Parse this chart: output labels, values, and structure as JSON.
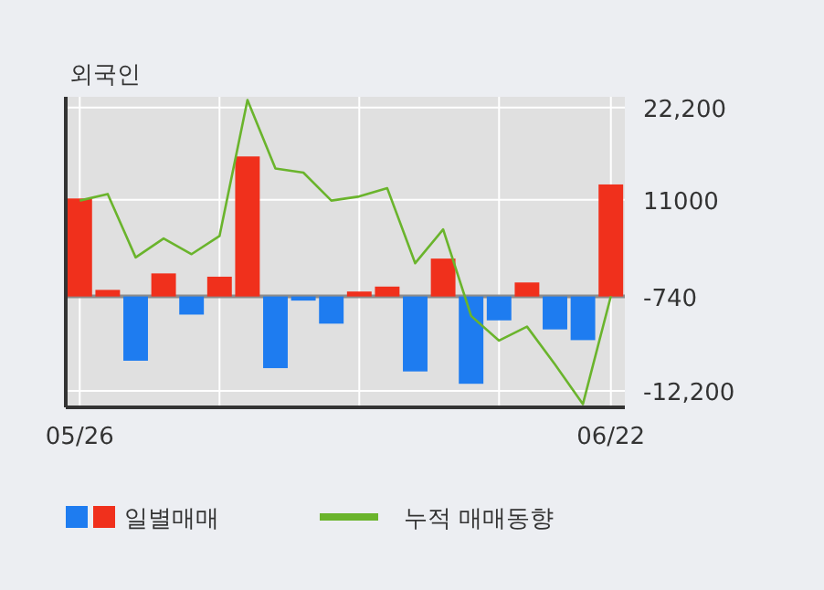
{
  "chart_data": {
    "type": "bar",
    "title": "외국인",
    "categories": [
      "05/26",
      null,
      null,
      null,
      null,
      null,
      null,
      null,
      null,
      null,
      null,
      null,
      null,
      null,
      null,
      null,
      null,
      null,
      null,
      "06/22"
    ],
    "series": [
      {
        "name": "일별매매",
        "colors": [
          "#f0301c",
          "#f0301c",
          "#1e7cf0",
          "#f0301c",
          "#1e7cf0",
          "#f0301c",
          "#f0301c",
          "#1e7cf0",
          "#1e7cf0",
          "#1e7cf0",
          "#f0301c",
          "#f0301c",
          "#1e7cf0",
          "#f0301c",
          "#1e7cf0",
          "#1e7cf0",
          "#f0301c",
          "#1e7cf0",
          "#1e7cf0",
          "#f0301c"
        ],
        "base": [
          -740,
          -740,
          -740,
          -740,
          -740,
          -740,
          -740,
          -740,
          -740,
          -740,
          -740,
          -740,
          -740,
          -740,
          -740,
          -740,
          -740,
          -740,
          -740,
          -740
        ],
        "values": [
          11900,
          800,
          -7800,
          2800,
          -2200,
          2400,
          17000,
          -8700,
          -500,
          -3300,
          600,
          1200,
          -9100,
          4600,
          -10600,
          -2900,
          1700,
          -4000,
          -5300,
          13600
        ]
      },
      {
        "name": "누적 매매동향",
        "type": "line",
        "color": "#6ab42c",
        "values": [
          10900,
          11700,
          4000,
          6300,
          4400,
          6600,
          23100,
          14800,
          14300,
          10900,
          11400,
          12400,
          3300,
          7400,
          -3100,
          -6100,
          -4400,
          -9000,
          -13800,
          -700
        ]
      }
    ],
    "ylim": [
      -14200,
      23500
    ],
    "yticks": [
      {
        "value": 22200,
        "label": "22,200"
      },
      11000,
      -740,
      {
        "value": -12200,
        "label": "-12,200"
      }
    ],
    "ref_lines": [
      {
        "axis": "y",
        "value": -740,
        "color": "#8c8c8c"
      }
    ],
    "grid": true,
    "legend": "bottom"
  }
}
